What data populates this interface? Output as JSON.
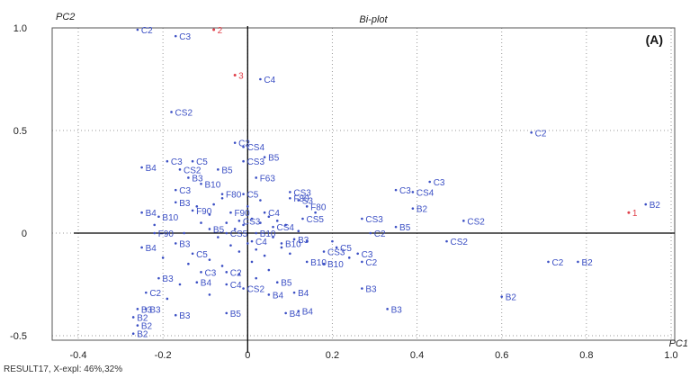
{
  "chart_data": {
    "type": "scatter",
    "title": "Bi-plot",
    "panel_label": "(A)",
    "xlabel": "PC1",
    "ylabel": "PC2",
    "xlim": [
      -0.4,
      1.0
    ],
    "ylim": [
      -0.55,
      1.0
    ],
    "x_ticks": [
      -0.4,
      -0.2,
      0,
      0.2,
      0.4,
      0.6,
      0.8,
      1.0
    ],
    "x_tick_labels": [
      "-0.4",
      "-0.2",
      "0",
      "0.2",
      "0.4",
      "0.6",
      "0.8",
      "1.0"
    ],
    "y_ticks": [
      -0.5,
      0,
      0.5,
      1.0
    ],
    "y_tick_labels": [
      "-0.5",
      "0",
      "0.5",
      "1.0"
    ],
    "grid": true,
    "footer": "RESULT17, X-expl: 46%,32%",
    "colors": {
      "samples": "#3b4fc4",
      "variables": "#e0404a",
      "axes": "#000000",
      "grid": "#9a9a9a"
    },
    "variables": [
      {
        "label": "2",
        "x": -0.08,
        "y": 1.0
      },
      {
        "label": "3",
        "x": -0.03,
        "y": 0.77
      },
      {
        "label": "1",
        "x": 0.9,
        "y": 0.1
      }
    ],
    "samples": [
      {
        "label": "C2",
        "x": -0.26,
        "y": 1.0
      },
      {
        "label": "C3",
        "x": -0.17,
        "y": 0.96
      },
      {
        "label": "C4",
        "x": 0.03,
        "y": 0.75
      },
      {
        "label": "CS2",
        "x": -0.18,
        "y": 0.59
      },
      {
        "label": "C2",
        "x": 0.67,
        "y": 0.49
      },
      {
        "label": "C2",
        "x": -0.03,
        "y": 0.44
      },
      {
        "label": "CS4",
        "x": -0.01,
        "y": 0.42
      },
      {
        "label": "B5",
        "x": 0.04,
        "y": 0.37
      },
      {
        "label": "CS3",
        "x": -0.01,
        "y": 0.35
      },
      {
        "label": "B4",
        "x": -0.25,
        "y": 0.32
      },
      {
        "label": "C3",
        "x": -0.19,
        "y": 0.35
      },
      {
        "label": "C5",
        "x": -0.13,
        "y": 0.35
      },
      {
        "label": "CS2",
        "x": -0.16,
        "y": 0.31
      },
      {
        "label": "B5",
        "x": -0.07,
        "y": 0.31
      },
      {
        "label": "B3",
        "x": -0.14,
        "y": 0.27
      },
      {
        "label": "F63",
        "x": 0.02,
        "y": 0.27
      },
      {
        "label": "B10",
        "x": -0.11,
        "y": 0.24
      },
      {
        "label": "C3",
        "x": -0.17,
        "y": 0.21
      },
      {
        "label": "F80",
        "x": -0.06,
        "y": 0.19
      },
      {
        "label": "C5",
        "x": -0.01,
        "y": 0.19
      },
      {
        "label": "CS3",
        "x": 0.1,
        "y": 0.2
      },
      {
        "label": "B3",
        "x": -0.17,
        "y": 0.15
      },
      {
        "label": "F80",
        "x": 0.1,
        "y": 0.17
      },
      {
        "label": "S3",
        "x": 0.12,
        "y": 0.16
      },
      {
        "label": "C3",
        "x": 0.35,
        "y": 0.21
      },
      {
        "label": "CS4",
        "x": 0.39,
        "y": 0.2
      },
      {
        "label": "C3",
        "x": 0.43,
        "y": 0.25
      },
      {
        "label": "B2",
        "x": 0.39,
        "y": 0.12
      },
      {
        "label": "F80",
        "x": 0.14,
        "y": 0.13
      },
      {
        "label": "CS5",
        "x": 0.13,
        "y": 0.07
      },
      {
        "label": "B4",
        "x": -0.25,
        "y": 0.1
      },
      {
        "label": "F90",
        "x": -0.13,
        "y": 0.11
      },
      {
        "label": "B10",
        "x": -0.21,
        "y": 0.08
      },
      {
        "label": "CS3",
        "x": 0.27,
        "y": 0.07
      },
      {
        "label": "B5",
        "x": 0.35,
        "y": 0.03
      },
      {
        "label": "CS2",
        "x": 0.51,
        "y": 0.06
      },
      {
        "label": "C2",
        "x": 0.29,
        "y": 0.0
      },
      {
        "label": "CS2",
        "x": 0.47,
        "y": -0.04
      },
      {
        "label": "B2",
        "x": 0.94,
        "y": 0.14
      },
      {
        "label": "F90",
        "x": -0.22,
        "y": 0.0
      },
      {
        "label": "B4",
        "x": -0.25,
        "y": -0.07
      },
      {
        "label": "B10",
        "x": 0.08,
        "y": -0.05
      },
      {
        "label": "B3",
        "x": 0.11,
        "y": -0.03
      },
      {
        "label": "C5",
        "x": 0.21,
        "y": -0.07
      },
      {
        "label": "CS3",
        "x": 0.18,
        "y": -0.09
      },
      {
        "label": "C3",
        "x": 0.26,
        "y": -0.1
      },
      {
        "label": "B10",
        "x": 0.14,
        "y": -0.14
      },
      {
        "label": "B10",
        "x": 0.18,
        "y": -0.15
      },
      {
        "label": "C2",
        "x": 0.27,
        "y": -0.14
      },
      {
        "label": "C2",
        "x": 0.71,
        "y": -0.14
      },
      {
        "label": "B2",
        "x": 0.78,
        "y": -0.14
      },
      {
        "label": "C3",
        "x": -0.11,
        "y": -0.19
      },
      {
        "label": "C2",
        "x": -0.05,
        "y": -0.19
      },
      {
        "label": "B3",
        "x": -0.21,
        "y": -0.22
      },
      {
        "label": "B4",
        "x": -0.12,
        "y": -0.24
      },
      {
        "label": "C4",
        "x": -0.05,
        "y": -0.25
      },
      {
        "label": "CS2",
        "x": -0.01,
        "y": -0.27
      },
      {
        "label": "B5",
        "x": 0.07,
        "y": -0.24
      },
      {
        "label": "C2",
        "x": -0.24,
        "y": -0.29
      },
      {
        "label": "B3",
        "x": 0.27,
        "y": -0.27
      },
      {
        "label": "B4",
        "x": 0.05,
        "y": -0.3
      },
      {
        "label": "B4",
        "x": 0.11,
        "y": -0.29
      },
      {
        "label": "B2",
        "x": 0.6,
        "y": -0.31
      },
      {
        "label": "B3",
        "x": -0.26,
        "y": -0.37
      },
      {
        "label": "B3",
        "x": -0.24,
        "y": -0.37
      },
      {
        "label": "B3",
        "x": -0.17,
        "y": -0.4
      },
      {
        "label": "B5",
        "x": -0.05,
        "y": -0.39
      },
      {
        "label": "B4",
        "x": 0.12,
        "y": -0.38
      },
      {
        "label": "B4",
        "x": 0.09,
        "y": -0.39
      },
      {
        "label": "B3",
        "x": 0.33,
        "y": -0.37
      },
      {
        "label": "B2",
        "x": -0.27,
        "y": -0.41
      },
      {
        "label": "B2",
        "x": -0.26,
        "y": -0.45
      },
      {
        "label": "B2",
        "x": -0.27,
        "y": -0.49
      },
      {
        "label": "CS3",
        "x": -0.02,
        "y": 0.06
      },
      {
        "label": "C4",
        "x": 0.04,
        "y": 0.1
      },
      {
        "label": "F90",
        "x": -0.04,
        "y": 0.1
      },
      {
        "label": "CS4",
        "x": 0.06,
        "y": 0.03
      },
      {
        "label": "B5",
        "x": -0.09,
        "y": 0.02
      },
      {
        "label": "C4",
        "x": 0.01,
        "y": -0.04
      },
      {
        "label": "CS5",
        "x": -0.05,
        "y": 0.0
      },
      {
        "label": "B10",
        "x": 0.02,
        "y": 0.0
      },
      {
        "label": "C5",
        "x": -0.13,
        "y": -0.1
      },
      {
        "label": "B3",
        "x": -0.17,
        "y": -0.05
      }
    ],
    "unlabeled_points": [
      {
        "x": -0.05,
        "y": 0.05
      },
      {
        "x": -0.03,
        "y": 0.02
      },
      {
        "x": -0.01,
        "y": 0.04
      },
      {
        "x": 0.01,
        "y": 0.07
      },
      {
        "x": 0.03,
        "y": 0.05
      },
      {
        "x": 0.05,
        "y": 0.08
      },
      {
        "x": 0.07,
        "y": 0.06
      },
      {
        "x": 0.09,
        "y": 0.04
      },
      {
        "x": -0.07,
        "y": -0.02
      },
      {
        "x": -0.04,
        "y": -0.06
      },
      {
        "x": -0.02,
        "y": -0.09
      },
      {
        "x": 0.0,
        "y": -0.05
      },
      {
        "x": 0.02,
        "y": -0.08
      },
      {
        "x": 0.04,
        "y": -0.11
      },
      {
        "x": 0.06,
        "y": -0.02
      },
      {
        "x": 0.08,
        "y": -0.07
      },
      {
        "x": 0.1,
        "y": -0.1
      },
      {
        "x": 0.12,
        "y": 0.01
      },
      {
        "x": -0.09,
        "y": 0.09
      },
      {
        "x": -0.11,
        "y": 0.05
      },
      {
        "x": -0.08,
        "y": 0.14
      },
      {
        "x": -0.06,
        "y": 0.17
      },
      {
        "x": 0.0,
        "y": 0.13
      },
      {
        "x": 0.03,
        "y": 0.16
      },
      {
        "x": -0.14,
        "y": -0.15
      },
      {
        "x": -0.09,
        "y": -0.13
      },
      {
        "x": -0.06,
        "y": -0.16
      },
      {
        "x": -0.02,
        "y": -0.2
      },
      {
        "x": 0.01,
        "y": -0.14
      },
      {
        "x": 0.05,
        "y": -0.18
      },
      {
        "x": -0.2,
        "y": -0.12
      },
      {
        "x": -0.22,
        "y": 0.04
      },
      {
        "x": -0.15,
        "y": 0.0
      },
      {
        "x": -0.12,
        "y": 0.13
      },
      {
        "x": 0.14,
        "y": -0.04
      },
      {
        "x": 0.16,
        "y": 0.1
      },
      {
        "x": 0.2,
        "y": -0.04
      },
      {
        "x": 0.24,
        "y": -0.12
      },
      {
        "x": -0.16,
        "y": -0.25
      },
      {
        "x": -0.19,
        "y": -0.32
      },
      {
        "x": -0.09,
        "y": -0.3
      },
      {
        "x": 0.02,
        "y": -0.22
      }
    ]
  }
}
